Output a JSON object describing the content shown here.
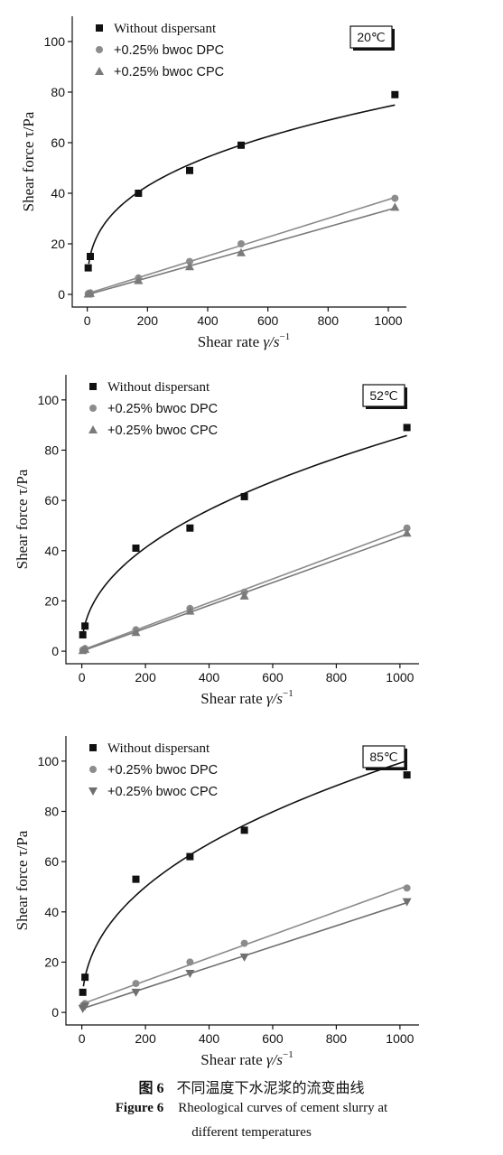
{
  "chart_data": [
    {
      "type": "scatter",
      "temperature_label": "20℃",
      "xlabel_text": "Shear rate ",
      "xlabel_symbol": "γ/s",
      "xlabel_exp": "−1",
      "ylabel": "Shear force τ/Pa",
      "xlim": [
        -50,
        1060
      ],
      "ylim": [
        -5,
        110
      ],
      "xticks": [
        0,
        200,
        400,
        600,
        800,
        1000
      ],
      "yticks": [
        0,
        20,
        40,
        60,
        80,
        100
      ],
      "legend_position": "top-left",
      "series": [
        {
          "name": "Without dispersant",
          "marker": "square",
          "color": "#111111",
          "line_color": "#111111",
          "fit": "power",
          "x": [
            3,
            10,
            170,
            340,
            511,
            1022
          ],
          "y": [
            10.5,
            15,
            40,
            49,
            59,
            79
          ]
        },
        {
          "name": "+0.25% bwoc DPC",
          "marker": "circle",
          "color": "#8c8c8c",
          "line_color": "#8c8c8c",
          "fit": "linear",
          "x": [
            3,
            10,
            170,
            340,
            511,
            1022
          ],
          "y": [
            0.3,
            0.6,
            6.5,
            13,
            20,
            38
          ]
        },
        {
          "name": "+0.25% bwoc CPC",
          "marker": "triangle-up",
          "color": "#7a7a7a",
          "line_color": "#7a7a7a",
          "fit": "linear",
          "x": [
            3,
            10,
            170,
            340,
            511,
            1022
          ],
          "y": [
            0.2,
            0.4,
            5.5,
            11,
            16.5,
            34.5
          ]
        }
      ]
    },
    {
      "type": "scatter",
      "temperature_label": "52℃",
      "xlabel_text": "Shear rate ",
      "xlabel_symbol": "γ/s",
      "xlabel_exp": "−1",
      "ylabel": "Shear force τ/Pa",
      "xlim": [
        -50,
        1060
      ],
      "ylim": [
        -5,
        110
      ],
      "xticks": [
        0,
        200,
        400,
        600,
        800,
        1000
      ],
      "yticks": [
        0,
        20,
        40,
        60,
        80,
        100
      ],
      "legend_position": "top-left",
      "series": [
        {
          "name": "Without dispersant",
          "marker": "square",
          "color": "#111111",
          "line_color": "#111111",
          "fit": "power",
          "x": [
            3,
            10,
            170,
            340,
            511,
            1022
          ],
          "y": [
            6.5,
            10,
            41,
            49,
            61.5,
            89
          ]
        },
        {
          "name": "+0.25% bwoc DPC",
          "marker": "circle",
          "color": "#8c8c8c",
          "line_color": "#8c8c8c",
          "fit": "linear",
          "x": [
            3,
            10,
            170,
            340,
            511,
            1022
          ],
          "y": [
            0.5,
            1,
            8.5,
            17,
            23.5,
            49
          ]
        },
        {
          "name": "+0.25% bwoc CPC",
          "marker": "triangle-up",
          "color": "#7a7a7a",
          "line_color": "#7a7a7a",
          "fit": "linear",
          "x": [
            3,
            10,
            170,
            340,
            511,
            1022
          ],
          "y": [
            0.3,
            0.8,
            7.5,
            16,
            22,
            47
          ]
        }
      ]
    },
    {
      "type": "scatter",
      "temperature_label": "85℃",
      "xlabel_text": "Shear rate ",
      "xlabel_symbol": "γ/s",
      "xlabel_exp": "−1",
      "ylabel": "Shear force τ/Pa",
      "xlim": [
        -50,
        1060
      ],
      "ylim": [
        -5,
        110
      ],
      "xticks": [
        0,
        200,
        400,
        600,
        800,
        1000
      ],
      "yticks": [
        0,
        20,
        40,
        60,
        80,
        100
      ],
      "legend_position": "top-left",
      "series": [
        {
          "name": "Without dispersant",
          "marker": "square",
          "color": "#111111",
          "line_color": "#111111",
          "fit": "power",
          "x": [
            3,
            10,
            170,
            340,
            511,
            1022
          ],
          "y": [
            8,
            14,
            53,
            62,
            72.5,
            94.5
          ]
        },
        {
          "name": "+0.25% bwoc DPC",
          "marker": "circle",
          "color": "#8c8c8c",
          "line_color": "#8c8c8c",
          "fit": "linear",
          "x": [
            3,
            10,
            170,
            340,
            511,
            1022
          ],
          "y": [
            2.5,
            3.5,
            11.5,
            20,
            27.5,
            49.5
          ]
        },
        {
          "name": "+0.25% bwoc CPC",
          "marker": "triangle-down",
          "color": "#6f6f6f",
          "line_color": "#6f6f6f",
          "fit": "linear",
          "x": [
            3,
            10,
            170,
            340,
            511,
            1022
          ],
          "y": [
            1.5,
            2.5,
            8,
            15.5,
            22,
            44
          ]
        }
      ]
    }
  ],
  "caption": {
    "zh_number": "图 6",
    "zh_title": "不同温度下水泥浆的流变曲线",
    "en_number": "Figure 6",
    "en_title_line1": "Rheological curves of cement slurry at",
    "en_title_line2": "different temperatures"
  }
}
